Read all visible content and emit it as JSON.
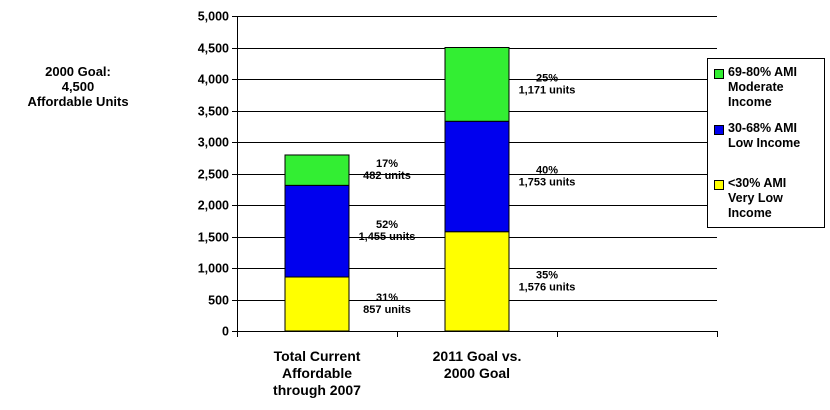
{
  "note": {
    "lines": [
      "2000 Goal:",
      "4,500",
      "Affordable Units"
    ]
  },
  "legend": [
    {
      "lines": [
        "69-80% AMI",
        "Moderate",
        "Income"
      ],
      "color": "#33ee33"
    },
    {
      "lines": [
        "30-68% AMI",
        "Low Income"
      ],
      "color": "#0000ee"
    },
    {
      "lines": [
        "<30% AMI",
        "Very Low",
        "Income"
      ],
      "color": "#ffff00"
    }
  ],
  "chart_data": {
    "type": "bar",
    "stacked": true,
    "categories": [
      [
        "Total Current",
        "Affordable",
        "through 2007"
      ],
      [
        "2011 Goal vs.",
        "2000 Goal"
      ]
    ],
    "series": [
      {
        "name": "<30% AMI Very Low Income",
        "color": "#ffff00",
        "values": [
          857,
          1576
        ],
        "labels": [
          [
            "31%",
            "857 units"
          ],
          [
            "35%",
            "1,576 units"
          ]
        ]
      },
      {
        "name": "30-68% AMI Low Income",
        "color": "#0000ee",
        "values": [
          1455,
          1753
        ],
        "labels": [
          [
            "52%",
            "1,455 units"
          ],
          [
            "40%",
            "1,753 units"
          ]
        ]
      },
      {
        "name": "69-80% AMI Moderate Income",
        "color": "#33ee33",
        "values": [
          482,
          1171
        ],
        "labels": [
          [
            "17%",
            "482 units"
          ],
          [
            "25%",
            "1,171 units"
          ]
        ]
      }
    ],
    "ylim": [
      0,
      5000
    ],
    "yticks": [
      "0",
      "500",
      "1,000",
      "1,500",
      "2,000",
      "2,500",
      "3,000",
      "3,500",
      "4,000",
      "4,500",
      "5,000"
    ],
    "grid": true,
    "legend_position": "right"
  }
}
